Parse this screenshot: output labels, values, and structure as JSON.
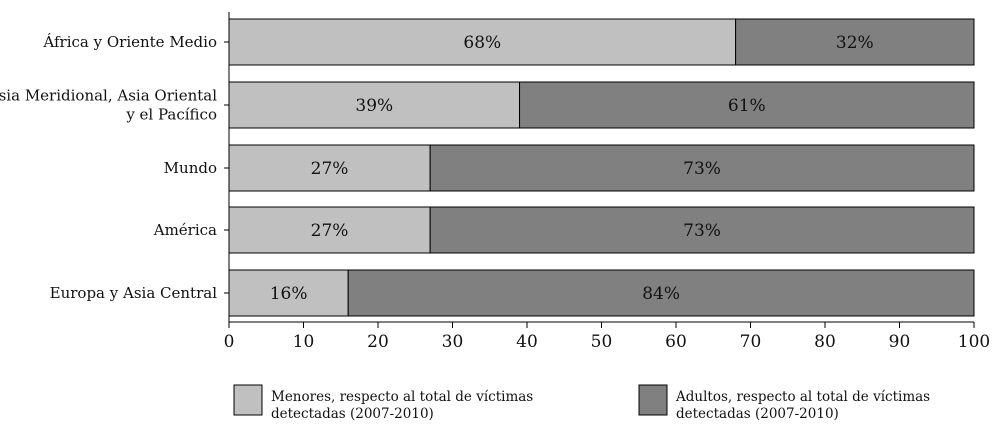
{
  "chart_data": {
    "type": "bar",
    "orientation": "horizontal",
    "stacked": true,
    "categories": [
      [
        "África y Oriente Medio"
      ],
      [
        "Asia Meridional, Asia Oriental",
        "y el Pacífico"
      ],
      [
        "Mundo"
      ],
      [
        "América"
      ],
      [
        "Europa y Asia Central"
      ]
    ],
    "series": [
      {
        "name": "Menores, respecto al total de víctimas detectadas (2007-2010)",
        "legend_lines": [
          "Menores, respecto al total de víctimas",
          "detectadas (2007-2010)"
        ],
        "color": "#c0c0c0",
        "values": [
          68,
          39,
          27,
          27,
          16
        ],
        "labels": [
          "68%",
          "39%",
          "27%",
          "27%",
          "16%"
        ]
      },
      {
        "name": "Adultos, respecto al total de víctimas detectadas (2007-2010)",
        "legend_lines": [
          "Adultos, respecto al total de víctimas",
          "detectadas (2007-2010)"
        ],
        "color": "#808080",
        "values": [
          32,
          61,
          73,
          73,
          84
        ],
        "labels": [
          "32%",
          "61%",
          "73%",
          "73%",
          "84%"
        ]
      }
    ],
    "xlim": [
      0,
      100
    ],
    "xticks": [
      0,
      10,
      20,
      30,
      40,
      50,
      60,
      70,
      80,
      90,
      100
    ],
    "grid": false,
    "legend_position": "bottom"
  }
}
